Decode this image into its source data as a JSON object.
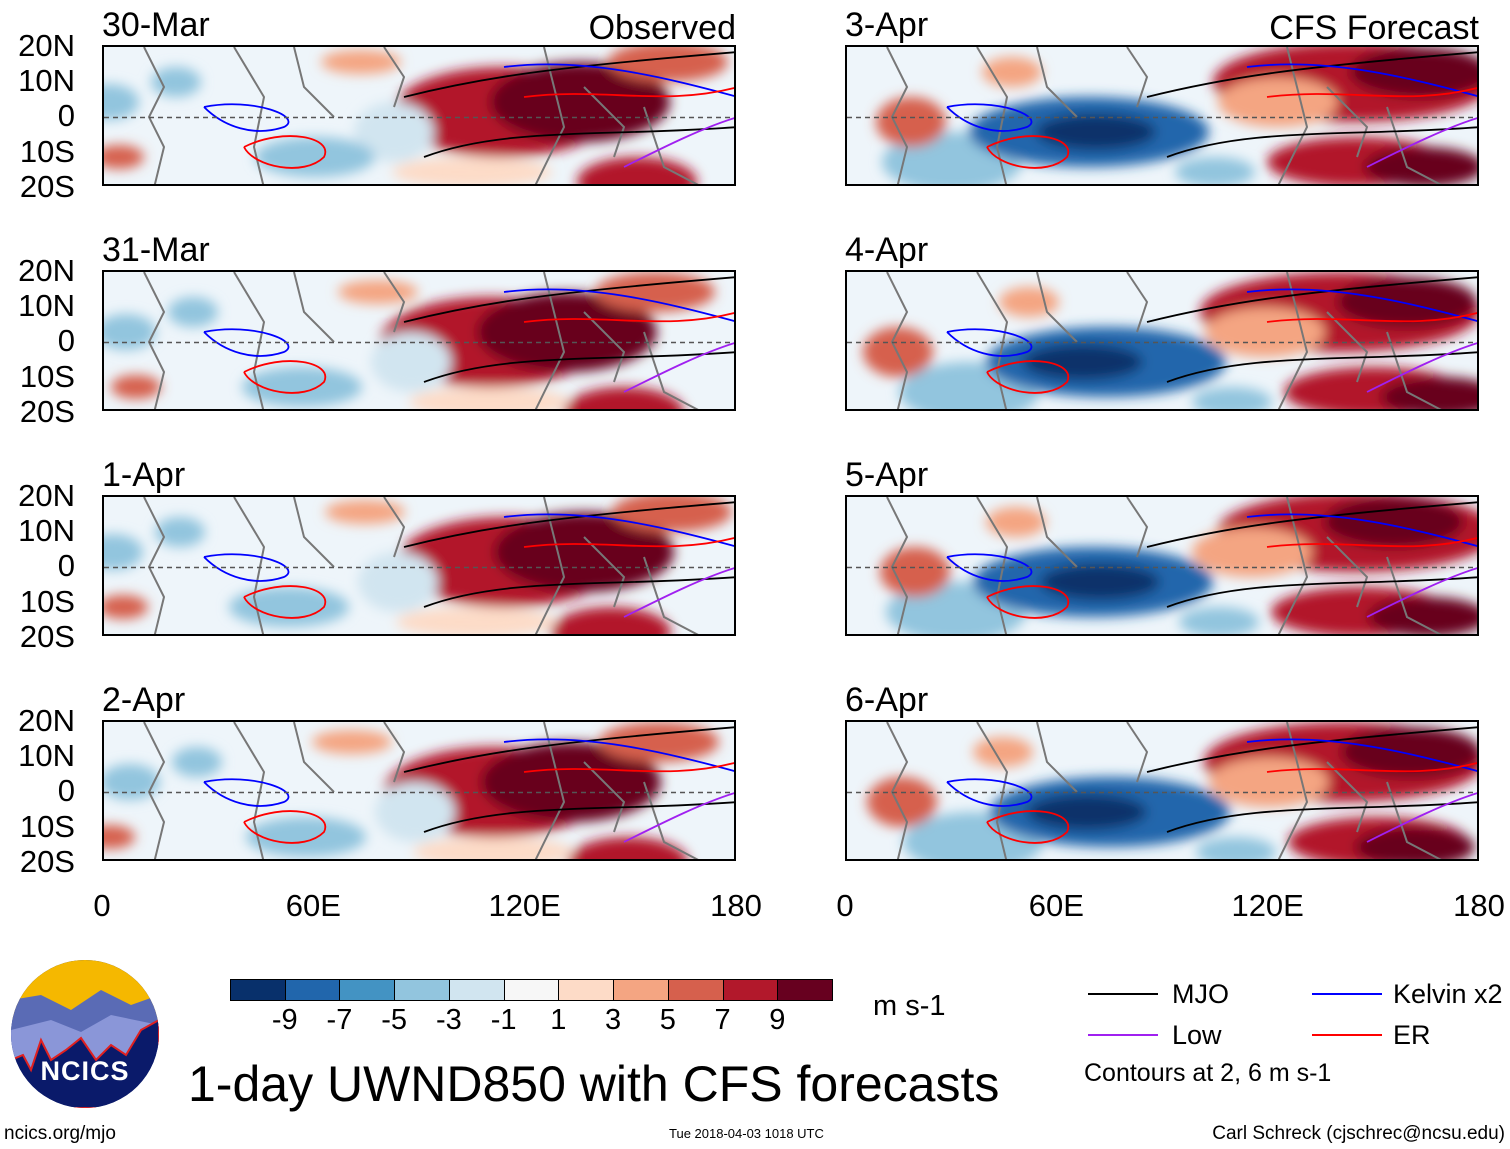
{
  "panels": {
    "observed": {
      "label": "Observed",
      "dates": [
        "30-Mar",
        "31-Mar",
        "1-Apr",
        "2-Apr"
      ]
    },
    "forecast": {
      "label": "CFS Forecast",
      "dates": [
        "3-Apr",
        "4-Apr",
        "5-Apr",
        "6-Apr"
      ]
    }
  },
  "lat_labels": [
    "20N",
    "10N",
    "0",
    "10S",
    "20S"
  ],
  "lon_labels": [
    "0",
    "60E",
    "120E",
    "180"
  ],
  "colorbar": {
    "colors": [
      "#08306b",
      "#2166ac",
      "#4393c3",
      "#92c5de",
      "#d1e5f0",
      "#f7f7f7",
      "#fddbc7",
      "#f4a582",
      "#d6604d",
      "#b2182b",
      "#67001f"
    ],
    "labels": [
      "-9",
      "-7",
      "-5",
      "-3",
      "-1",
      "1",
      "3",
      "5",
      "7",
      "9"
    ],
    "units": "m s-1"
  },
  "title": "1-day UWND850 with CFS forecasts",
  "legend": {
    "items": [
      {
        "label": "MJO",
        "color": "#000000"
      },
      {
        "label": "Kelvin x2",
        "color": "#0000ff"
      },
      {
        "label": "Low",
        "color": "#a020f0"
      },
      {
        "label": "ER",
        "color": "#ff0000"
      }
    ],
    "note": "Contours at 2, 6 m s-1"
  },
  "logo": {
    "text": "NCICS"
  },
  "footer": {
    "url": "ncics.org/mjo",
    "timestamp": "Tue 2018-04-03 1018 UTC",
    "author": "Carl Schreck (cjschrec@ncsu.edu)"
  }
}
